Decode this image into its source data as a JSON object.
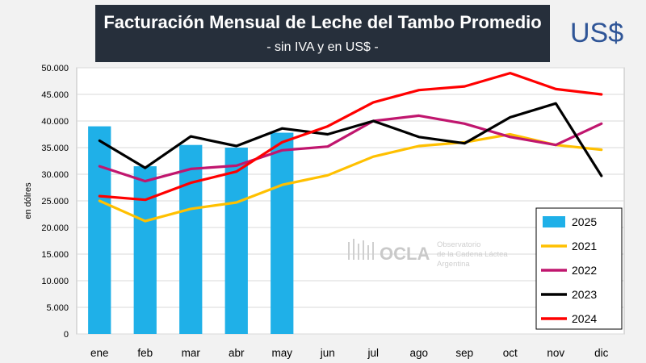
{
  "header": {
    "title": "Facturación Mensual de Leche del Tambo Promedio",
    "subtitle": "- sin IVA y en US$ -",
    "currency_badge": "US$"
  },
  "watermark": {
    "logo": "OCLA",
    "line1": "Observatorio",
    "line2": "de la Cadena Láctea",
    "line3": "Argentina"
  },
  "chart_data": {
    "type": "bar+line",
    "title": "Facturación Mensual de Leche del Tambo Promedio",
    "subtitle": "- sin IVA y en US$ -",
    "ylabel": "en dólres",
    "xlabel": "",
    "ylim": [
      0,
      50000
    ],
    "ytick_values": [
      0,
      5000,
      10000,
      15000,
      20000,
      25000,
      30000,
      35000,
      40000,
      45000,
      50000
    ],
    "ytick_labels": [
      "0",
      "5.000",
      "10.000",
      "15.000",
      "20.000",
      "25.000",
      "30.000",
      "35.000",
      "40.000",
      "45.000",
      "50.000"
    ],
    "categories": [
      "ene",
      "feb",
      "mar",
      "abr",
      "may",
      "jun",
      "jul",
      "ago",
      "sep",
      "oct",
      "nov",
      "dic"
    ],
    "legend_position": "bottom-right",
    "grid": "horizontal",
    "bars": {
      "name": "2025",
      "color": "#1fb0e8",
      "values": [
        39000,
        31500,
        35500,
        35000,
        37800
      ]
    },
    "series": [
      {
        "name": "2021",
        "color": "#ffc000",
        "values": [
          25000,
          21200,
          23500,
          24700,
          28000,
          29800,
          33300,
          35300,
          36000,
          37500,
          35500,
          34600
        ]
      },
      {
        "name": "2022",
        "color": "#c0166e",
        "values": [
          31500,
          28700,
          31000,
          31600,
          34500,
          35200,
          40000,
          41000,
          39500,
          37000,
          35500,
          39500
        ]
      },
      {
        "name": "2023",
        "color": "#000000",
        "values": [
          36300,
          31200,
          37100,
          35300,
          38600,
          37500,
          40000,
          37000,
          35800,
          40700,
          43300,
          29700
        ]
      },
      {
        "name": "2024",
        "color": "#ff0000",
        "values": [
          25900,
          25200,
          28400,
          30500,
          36000,
          39000,
          43500,
          45800,
          46500,
          49000,
          46000,
          45000
        ]
      }
    ]
  }
}
